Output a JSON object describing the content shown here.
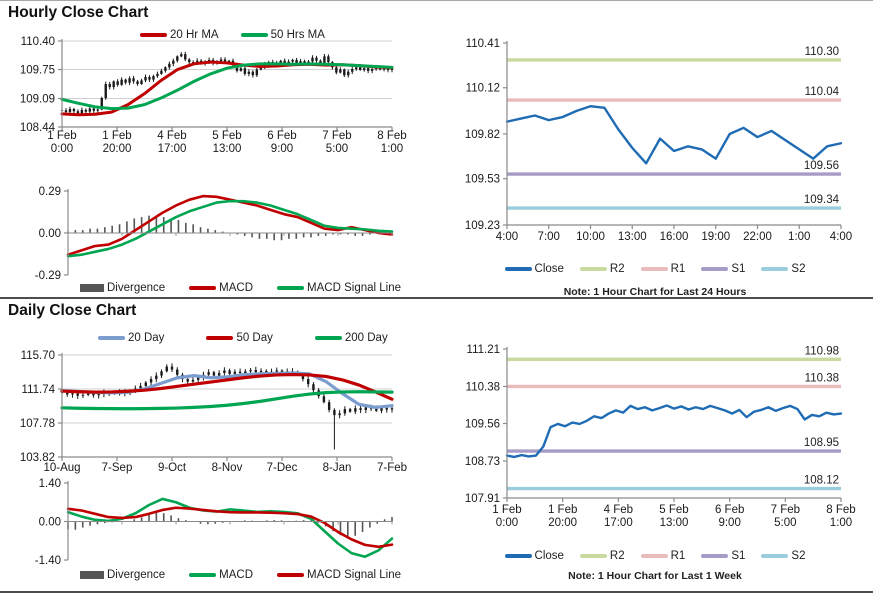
{
  "hourly": {
    "title": "Hourly Close Chart",
    "note": "Note: 1 Hour Chart for Last 24 Hours",
    "price_legend": [
      {
        "label": "20 Hr MA",
        "color": "#c00000"
      },
      {
        "label": "50 Hrs MA",
        "color": "#00a551"
      }
    ],
    "macd_legend": [
      {
        "label": "Divergence",
        "color": "#555555"
      },
      {
        "label": "MACD",
        "color": "#c00000"
      },
      {
        "label": "MACD Signal Line",
        "color": "#00a551"
      }
    ],
    "levels_legend": [
      {
        "label": "Close",
        "color": "#1f6cb5"
      },
      {
        "label": "R2",
        "color": "#c9da9e"
      },
      {
        "label": "R1",
        "color": "#e8bcbb"
      },
      {
        "label": "S1",
        "color": "#a79cc8"
      },
      {
        "label": "S2",
        "color": "#9bcedc"
      }
    ]
  },
  "daily": {
    "title": "Daily Close Chart",
    "note": "Note: 1 Hour Chart for Last 1 Week",
    "price_legend": [
      {
        "label": "20 Day",
        "color": "#7a9cce"
      },
      {
        "label": "50 Day",
        "color": "#c00000"
      },
      {
        "label": "200 Day",
        "color": "#00a551"
      }
    ],
    "macd_legend": [
      {
        "label": "Divergence",
        "color": "#555555"
      },
      {
        "label": "MACD",
        "color": "#00a551"
      },
      {
        "label": "MACD Signal Line",
        "color": "#c00000"
      }
    ],
    "levels_legend": [
      {
        "label": "Close",
        "color": "#1f6cb5"
      },
      {
        "label": "R2",
        "color": "#c9da9e"
      },
      {
        "label": "R1",
        "color": "#e8bcbb"
      },
      {
        "label": "S1",
        "color": "#a79cc8"
      },
      {
        "label": "S2",
        "color": "#9bcedc"
      }
    ]
  },
  "chart_data": [
    {
      "id": "hc",
      "el": "chart-hourly-price",
      "type": "candlestick",
      "ylim": [
        108.44,
        110.4
      ],
      "yticks": [
        {
          "v": 110.4,
          "t": "110.40"
        },
        {
          "v": 109.75,
          "t": "109.75"
        },
        {
          "v": 109.09,
          "t": "109.09"
        },
        {
          "v": 108.44,
          "t": "108.44"
        }
      ],
      "grid": [
        110.4,
        109.75,
        109.09
      ],
      "xlabels": [
        [
          "1 Feb",
          "0:00"
        ],
        [
          "1 Feb",
          "20:00"
        ],
        [
          "4 Feb",
          "17:00"
        ],
        [
          "5 Feb",
          "13:00"
        ],
        [
          "6 Feb",
          "9:00"
        ],
        [
          "7 Feb",
          "5:00"
        ],
        [
          "8 Feb",
          "1:00"
        ]
      ],
      "candles": {
        "color": "#1a1a1a",
        "wick": 0.055,
        "closes": [
          108.82,
          108.78,
          108.85,
          108.8,
          108.75,
          108.83,
          108.79,
          108.86,
          108.81,
          108.84,
          109.1,
          109.42,
          109.35,
          109.48,
          109.4,
          109.52,
          109.45,
          109.55,
          109.48,
          109.42,
          109.5,
          109.58,
          109.52,
          109.6,
          109.65,
          109.72,
          109.8,
          109.88,
          109.95,
          110.05,
          110.1,
          109.98,
          109.92,
          109.9,
          109.95,
          109.88,
          109.93,
          109.97,
          109.9,
          109.94,
          109.98,
          109.92,
          109.95,
          109.85,
          109.72,
          109.78,
          109.65,
          109.7,
          109.62,
          109.75,
          109.8,
          109.88,
          109.92,
          109.85,
          109.9,
          109.95,
          109.88,
          109.93,
          109.97,
          109.9,
          109.94,
          109.89,
          109.93,
          110.02,
          109.95,
          109.88,
          110.05,
          109.92,
          109.8,
          109.68,
          109.75,
          109.62,
          109.7,
          109.76,
          109.8,
          109.74,
          109.78,
          109.72,
          109.76,
          109.8,
          109.75,
          109.78,
          109.74,
          109.77
        ]
      },
      "lines": [
        {
          "name": "20 Hr MA",
          "color": "#c00000",
          "width": 3,
          "values": [
            108.74,
            108.72,
            108.73,
            108.78,
            108.95,
            109.2,
            109.5,
            109.75,
            109.88,
            109.92,
            109.9,
            109.85,
            109.82,
            109.83,
            109.86,
            109.87,
            109.85,
            109.86,
            109.84,
            109.81,
            109.79
          ]
        },
        {
          "name": "50 Hrs MA",
          "color": "#00a551",
          "width": 3,
          "values": [
            109.07,
            108.98,
            108.9,
            108.86,
            108.87,
            108.95,
            109.1,
            109.28,
            109.48,
            109.65,
            109.78,
            109.85,
            109.88,
            109.88,
            109.87,
            109.88,
            109.87,
            109.86,
            109.84,
            109.82,
            109.8
          ]
        }
      ]
    },
    {
      "id": "hm",
      "el": "chart-hourly-macd",
      "type": "macd",
      "ylim": [
        -0.29,
        0.29
      ],
      "yticks": [
        {
          "v": 0.29,
          "t": "0.29"
        },
        {
          "v": 0,
          "t": "0.00"
        },
        {
          "v": -0.29,
          "t": "-0.29"
        }
      ],
      "xaxis_zero": true,
      "zero_ticks": 7,
      "bars": {
        "name": "Divergence",
        "color": "#555555",
        "values": [
          0.01,
          0.02,
          0.02,
          0.03,
          0.03,
          0.04,
          0.05,
          0.06,
          0.08,
          0.1,
          0.11,
          0.12,
          0.12,
          0.11,
          0.1,
          0.09,
          0.07,
          0.06,
          0.04,
          0.03,
          0.02,
          0.01,
          0.0,
          -0.01,
          -0.02,
          -0.03,
          -0.04,
          -0.04,
          -0.05,
          -0.05,
          -0.04,
          -0.04,
          -0.03,
          -0.03,
          -0.02,
          -0.02,
          -0.01,
          -0.01,
          -0.01,
          -0.02,
          -0.02,
          -0.01,
          0.01,
          0.01,
          0.01
        ]
      },
      "lines": [
        {
          "name": "MACD",
          "color": "#c00000",
          "width": 2.6,
          "values": [
            -0.15,
            -0.12,
            -0.09,
            -0.08,
            -0.04,
            0.02,
            0.08,
            0.14,
            0.19,
            0.23,
            0.255,
            0.25,
            0.23,
            0.21,
            0.19,
            0.16,
            0.13,
            0.11,
            0.07,
            0.03,
            0.02,
            0.04,
            0.02,
            0.0,
            -0.01
          ]
        },
        {
          "name": "MACD Signal Line",
          "color": "#00a551",
          "width": 2.6,
          "values": [
            -0.16,
            -0.15,
            -0.13,
            -0.11,
            -0.08,
            -0.04,
            0.01,
            0.06,
            0.11,
            0.15,
            0.18,
            0.21,
            0.22,
            0.22,
            0.21,
            0.19,
            0.16,
            0.13,
            0.09,
            0.05,
            0.035,
            0.03,
            0.025,
            0.015,
            0.01
          ]
        }
      ]
    },
    {
      "id": "hl",
      "el": "chart-hourly-levels",
      "type": "line",
      "ylim": [
        109.23,
        110.41
      ],
      "yticks": [
        {
          "v": 110.41,
          "t": "110.41"
        },
        {
          "v": 110.12,
          "t": "110.12"
        },
        {
          "v": 109.82,
          "t": "109.82"
        },
        {
          "v": 109.53,
          "t": "109.53"
        },
        {
          "v": 109.23,
          "t": "109.23"
        }
      ],
      "xlabels": [
        "4:00",
        "7:00",
        "10:00",
        "13:00",
        "16:00",
        "19:00",
        "22:00",
        "1:00",
        "4:00"
      ],
      "levels": [
        {
          "name": "R2",
          "label": "110.30",
          "v": 110.3,
          "color": "#c9da9e"
        },
        {
          "name": "R1",
          "label": "110.04",
          "v": 110.04,
          "color": "#e8bcbb"
        },
        {
          "name": "S1",
          "label": "109.56",
          "v": 109.56,
          "color": "#a79cc8"
        },
        {
          "name": "S2",
          "label": "109.34",
          "v": 109.34,
          "color": "#9bcedc"
        }
      ],
      "lines": [
        {
          "name": "Close",
          "color": "#1f6cb5",
          "width": 2.4,
          "values": [
            109.9,
            109.92,
            109.94,
            109.91,
            109.93,
            109.97,
            110.0,
            109.99,
            109.85,
            109.73,
            109.63,
            109.79,
            109.71,
            109.74,
            109.72,
            109.66,
            109.82,
            109.86,
            109.8,
            109.84,
            109.78,
            109.72,
            109.66,
            109.74,
            109.76
          ]
        }
      ]
    },
    {
      "id": "dc",
      "el": "chart-daily-price",
      "type": "candlestick",
      "ylim": [
        103.82,
        115.7
      ],
      "yticks": [
        {
          "v": 115.7,
          "t": "115.70"
        },
        {
          "v": 111.74,
          "t": "111.74"
        },
        {
          "v": 107.78,
          "t": "107.78"
        },
        {
          "v": 103.82,
          "t": "103.82"
        }
      ],
      "grid": [
        115.7,
        111.74,
        107.78
      ],
      "xlabels": [
        "10-Aug",
        "7-Sep",
        "9-Oct",
        "8-Nov",
        "7-Dec",
        "8-Jan",
        "7-Feb"
      ],
      "candles": {
        "color": "#1a1a1a",
        "wick": 0.38,
        "spike": {
          "index": 52,
          "low": 104.7
        },
        "closes": [
          111.3,
          111.1,
          111.25,
          110.95,
          111.05,
          111.2,
          111.0,
          111.15,
          111.3,
          111.2,
          111.35,
          111.25,
          111.4,
          111.55,
          111.8,
          112.1,
          112.5,
          112.9,
          113.3,
          113.8,
          114.35,
          114.0,
          113.4,
          112.9,
          112.6,
          112.8,
          113.1,
          113.4,
          113.7,
          113.3,
          113.6,
          113.9,
          113.5,
          113.75,
          113.6,
          113.8,
          113.95,
          113.7,
          113.85,
          113.6,
          113.75,
          113.9,
          113.65,
          113.8,
          113.7,
          113.4,
          112.9,
          112.3,
          111.6,
          110.9,
          110.2,
          109.3,
          108.7,
          108.9,
          109.4,
          109.1,
          109.5,
          109.3,
          109.6,
          109.45,
          109.2,
          109.55,
          109.35,
          109.5
        ]
      },
      "lines": [
        {
          "name": "20 Day",
          "color": "#7a9cce",
          "width": 3.2,
          "values": [
            111.55,
            111.45,
            111.35,
            111.3,
            111.35,
            111.75,
            112.4,
            113.05,
            113.3,
            113.05,
            113.15,
            113.4,
            113.5,
            113.55,
            113.6,
            113.5,
            112.6,
            111.2,
            109.95,
            109.6,
            109.8
          ]
        },
        {
          "name": "50 Day",
          "color": "#c00000",
          "width": 3.2,
          "values": [
            111.5,
            111.42,
            111.38,
            111.4,
            111.48,
            111.6,
            111.8,
            112.05,
            112.3,
            112.55,
            112.8,
            113.05,
            113.25,
            113.38,
            113.42,
            113.38,
            113.2,
            112.8,
            112.2,
            111.4,
            110.55
          ]
        },
        {
          "name": "200 Day",
          "color": "#00a551",
          "width": 3.2,
          "values": [
            109.55,
            109.5,
            109.47,
            109.45,
            109.44,
            109.45,
            109.48,
            109.52,
            109.6,
            109.7,
            109.85,
            110.05,
            110.3,
            110.6,
            110.9,
            111.15,
            111.32,
            111.4,
            111.42,
            111.4,
            111.38
          ]
        }
      ]
    },
    {
      "id": "dm",
      "el": "chart-daily-macd",
      "type": "macd",
      "ylim": [
        -1.4,
        1.4
      ],
      "yticks": [
        {
          "v": 1.4,
          "t": "1.40"
        },
        {
          "v": 0,
          "t": "0.00"
        },
        {
          "v": -1.4,
          "t": "-1.40"
        }
      ],
      "xaxis_zero": true,
      "zero_ticks": 7,
      "bars": {
        "name": "Divergence",
        "color": "#555555",
        "values": [
          -0.28,
          -0.3,
          -0.22,
          -0.15,
          -0.1,
          -0.06,
          -0.03,
          -0.02,
          0.02,
          0.08,
          0.15,
          0.25,
          0.32,
          0.3,
          0.22,
          0.12,
          0.05,
          -0.02,
          -0.08,
          -0.1,
          -0.08,
          -0.05,
          -0.02,
          0.02,
          0.04,
          0.03,
          0.02,
          0.04,
          0.05,
          0.04,
          0.02,
          0.03,
          0.05,
          0.04,
          -0.05,
          -0.18,
          -0.35,
          -0.5,
          -0.58,
          -0.52,
          -0.38,
          -0.22,
          -0.08,
          0.08,
          0.16
        ]
      },
      "lines": [
        {
          "name": "MACD",
          "color": "#00a551",
          "width": 2.6,
          "values": [
            0.34,
            0.18,
            0.06,
            0.02,
            0.1,
            0.3,
            0.6,
            0.82,
            0.7,
            0.5,
            0.4,
            0.36,
            0.44,
            0.4,
            0.35,
            0.37,
            0.35,
            0.3,
            0.1,
            -0.35,
            -0.8,
            -1.15,
            -1.28,
            -1.05,
            -0.62
          ]
        },
        {
          "name": "MACD Signal Line",
          "color": "#c00000",
          "width": 2.6,
          "values": [
            0.46,
            0.4,
            0.28,
            0.16,
            0.13,
            0.16,
            0.28,
            0.42,
            0.5,
            0.47,
            0.42,
            0.37,
            0.34,
            0.33,
            0.33,
            0.32,
            0.3,
            0.27,
            0.18,
            -0.05,
            -0.38,
            -0.65,
            -0.85,
            -0.92,
            -0.84
          ]
        }
      ]
    },
    {
      "id": "dl",
      "el": "chart-daily-levels",
      "type": "line",
      "ylim": [
        107.91,
        111.21
      ],
      "yticks": [
        {
          "v": 111.21,
          "t": "111.21"
        },
        {
          "v": 110.38,
          "t": "110.38"
        },
        {
          "v": 109.56,
          "t": "109.56"
        },
        {
          "v": 108.73,
          "t": "108.73"
        },
        {
          "v": 107.91,
          "t": "107.91"
        }
      ],
      "xlabels": [
        [
          "1 Feb",
          "0:00"
        ],
        [
          "1 Feb",
          "20:00"
        ],
        [
          "4 Feb",
          "17:00"
        ],
        [
          "5 Feb",
          "13:00"
        ],
        [
          "6 Feb",
          "9:00"
        ],
        [
          "7 Feb",
          "5:00"
        ],
        [
          "8 Feb",
          "1:00"
        ]
      ],
      "levels": [
        {
          "name": "R2",
          "label": "110.98",
          "v": 110.98,
          "color": "#c9da9e"
        },
        {
          "name": "R1",
          "label": "110.38",
          "v": 110.38,
          "color": "#e8bcbb"
        },
        {
          "name": "S1",
          "label": "108.95",
          "v": 108.95,
          "color": "#a79cc8"
        },
        {
          "name": "S2",
          "label": "108.12",
          "v": 108.12,
          "color": "#9bcedc"
        }
      ],
      "lines": [
        {
          "name": "Close",
          "color": "#1f6cb5",
          "width": 2.4,
          "values": [
            108.85,
            108.82,
            108.86,
            108.83,
            108.85,
            109.05,
            109.48,
            109.55,
            109.5,
            109.58,
            109.55,
            109.62,
            109.72,
            109.68,
            109.78,
            109.85,
            109.8,
            109.95,
            109.88,
            109.92,
            109.85,
            109.9,
            109.96,
            109.89,
            109.94,
            109.87,
            109.92,
            109.88,
            109.95,
            109.9,
            109.85,
            109.78,
            109.86,
            109.7,
            109.82,
            109.86,
            109.92,
            109.84,
            109.9,
            109.95,
            109.88,
            109.65,
            109.75,
            109.72,
            109.8,
            109.76,
            109.78
          ]
        }
      ]
    }
  ]
}
